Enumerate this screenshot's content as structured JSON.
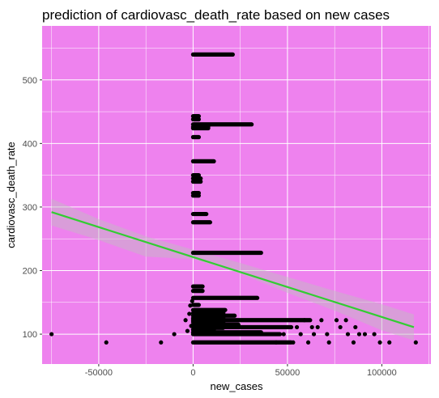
{
  "chart_data": {
    "type": "scatter",
    "title": "prediction of cardiovasc_death_rate based on new cases",
    "xlabel": "new_cases",
    "ylabel": "cardiovasc_death_rate",
    "xlim": [
      -80000,
      126000
    ],
    "ylim": [
      53,
      585
    ],
    "x_ticks": [
      -50000,
      0,
      50000,
      100000
    ],
    "x_tick_labels": [
      "-50000",
      "0",
      "50000",
      "100000"
    ],
    "y_ticks": [
      100,
      200,
      300,
      400,
      500
    ],
    "y_tick_labels": [
      "100",
      "200",
      "300",
      "400",
      "500"
    ],
    "grid": true,
    "legend": "none",
    "colors": {
      "panel_background": "#ee82ee",
      "grid": "#ffffff",
      "points": "#000000",
      "fit_line": "#32cd32",
      "confidence_band": "#bebebe"
    },
    "bands": [
      {
        "y": 540,
        "x_from": 0,
        "x_to": 21000
      },
      {
        "y": 443,
        "x_from": 0,
        "x_to": 3000
      },
      {
        "y": 438,
        "x_from": 0,
        "x_to": 3000
      },
      {
        "y": 430,
        "x_from": 0,
        "x_to": 31000
      },
      {
        "y": 426,
        "x_from": 0,
        "x_to": 8000
      },
      {
        "y": 424,
        "x_from": 0,
        "x_to": 8000
      },
      {
        "y": 410,
        "x_from": 0,
        "x_to": 3000
      },
      {
        "y": 372,
        "x_from": 0,
        "x_to": 11000
      },
      {
        "y": 350,
        "x_from": 0,
        "x_to": 3000
      },
      {
        "y": 345,
        "x_from": 0,
        "x_to": 4000
      },
      {
        "y": 340,
        "x_from": 0,
        "x_to": 4000
      },
      {
        "y": 322,
        "x_from": 0,
        "x_to": 3000
      },
      {
        "y": 318,
        "x_from": 0,
        "x_to": 3000
      },
      {
        "y": 289,
        "x_from": 0,
        "x_to": 7000
      },
      {
        "y": 276,
        "x_from": 0,
        "x_to": 9000
      },
      {
        "y": 228,
        "x_from": 0,
        "x_to": 36000
      },
      {
        "y": 175,
        "x_from": 0,
        "x_to": 5000
      },
      {
        "y": 168,
        "x_from": 0,
        "x_to": 5000
      },
      {
        "y": 157,
        "x_from": 0,
        "x_to": 34000
      },
      {
        "y": 146,
        "x_from": 0,
        "x_to": 3000
      },
      {
        "y": 138,
        "x_from": 0,
        "x_to": 17000
      },
      {
        "y": 133,
        "x_from": 0,
        "x_to": 15000
      },
      {
        "y": 129,
        "x_from": 0,
        "x_to": 22000
      },
      {
        "y": 125,
        "x_from": 0,
        "x_to": 12000
      },
      {
        "y": 122,
        "x_from": 0,
        "x_to": 62000
      },
      {
        "y": 119,
        "x_from": 0,
        "x_to": 12000
      },
      {
        "y": 115,
        "x_from": 0,
        "x_to": 24000
      },
      {
        "y": 111,
        "x_from": 0,
        "x_to": 52000
      },
      {
        "y": 107,
        "x_from": 0,
        "x_to": 11000
      },
      {
        "y": 103,
        "x_from": 0,
        "x_to": 36000
      },
      {
        "y": 100,
        "x_from": 0,
        "x_to": 46000
      },
      {
        "y": 87,
        "x_from": 0,
        "x_to": 52000
      }
    ],
    "clusters": [
      {
        "x_from": 1000,
        "x_to": 16000,
        "y_from": 110,
        "y_to": 137
      }
    ],
    "points": [
      [
        -75000,
        100
      ],
      [
        -46000,
        87
      ],
      [
        -17000,
        87
      ],
      [
        -10000,
        100
      ],
      [
        -4000,
        122
      ],
      [
        -2000,
        132
      ],
      [
        -1000,
        113
      ],
      [
        -3000,
        105
      ],
      [
        -500,
        152
      ],
      [
        -1500,
        145
      ],
      [
        44000,
        87
      ],
      [
        48000,
        100
      ],
      [
        53000,
        87
      ],
      [
        57000,
        100
      ],
      [
        61000,
        87
      ],
      [
        64000,
        100
      ],
      [
        68000,
        122
      ],
      [
        72000,
        87
      ],
      [
        76000,
        122
      ],
      [
        78000,
        111
      ],
      [
        82000,
        100
      ],
      [
        85000,
        87
      ],
      [
        88000,
        100
      ],
      [
        91000,
        100
      ],
      [
        96000,
        100
      ],
      [
        99000,
        87
      ],
      [
        71000,
        100
      ],
      [
        66000,
        111
      ],
      [
        104000,
        87
      ],
      [
        118000,
        87
      ],
      [
        55000,
        111
      ],
      [
        59000,
        122
      ],
      [
        63000,
        111
      ],
      [
        86000,
        111
      ],
      [
        81000,
        122
      ]
    ],
    "fit_line": [
      [
        -75000,
        292
      ],
      [
        117000,
        111
      ]
    ],
    "confidence_band": {
      "x": [
        -75000,
        -50000,
        -25000,
        0,
        25000,
        50000,
        75000,
        100000,
        117000
      ],
      "upper": [
        313,
        281,
        254,
        233,
        212,
        190,
        168,
        147,
        131
      ],
      "lower": [
        271,
        248,
        222,
        218,
        195,
        165,
        137,
        106,
        90
      ]
    }
  }
}
